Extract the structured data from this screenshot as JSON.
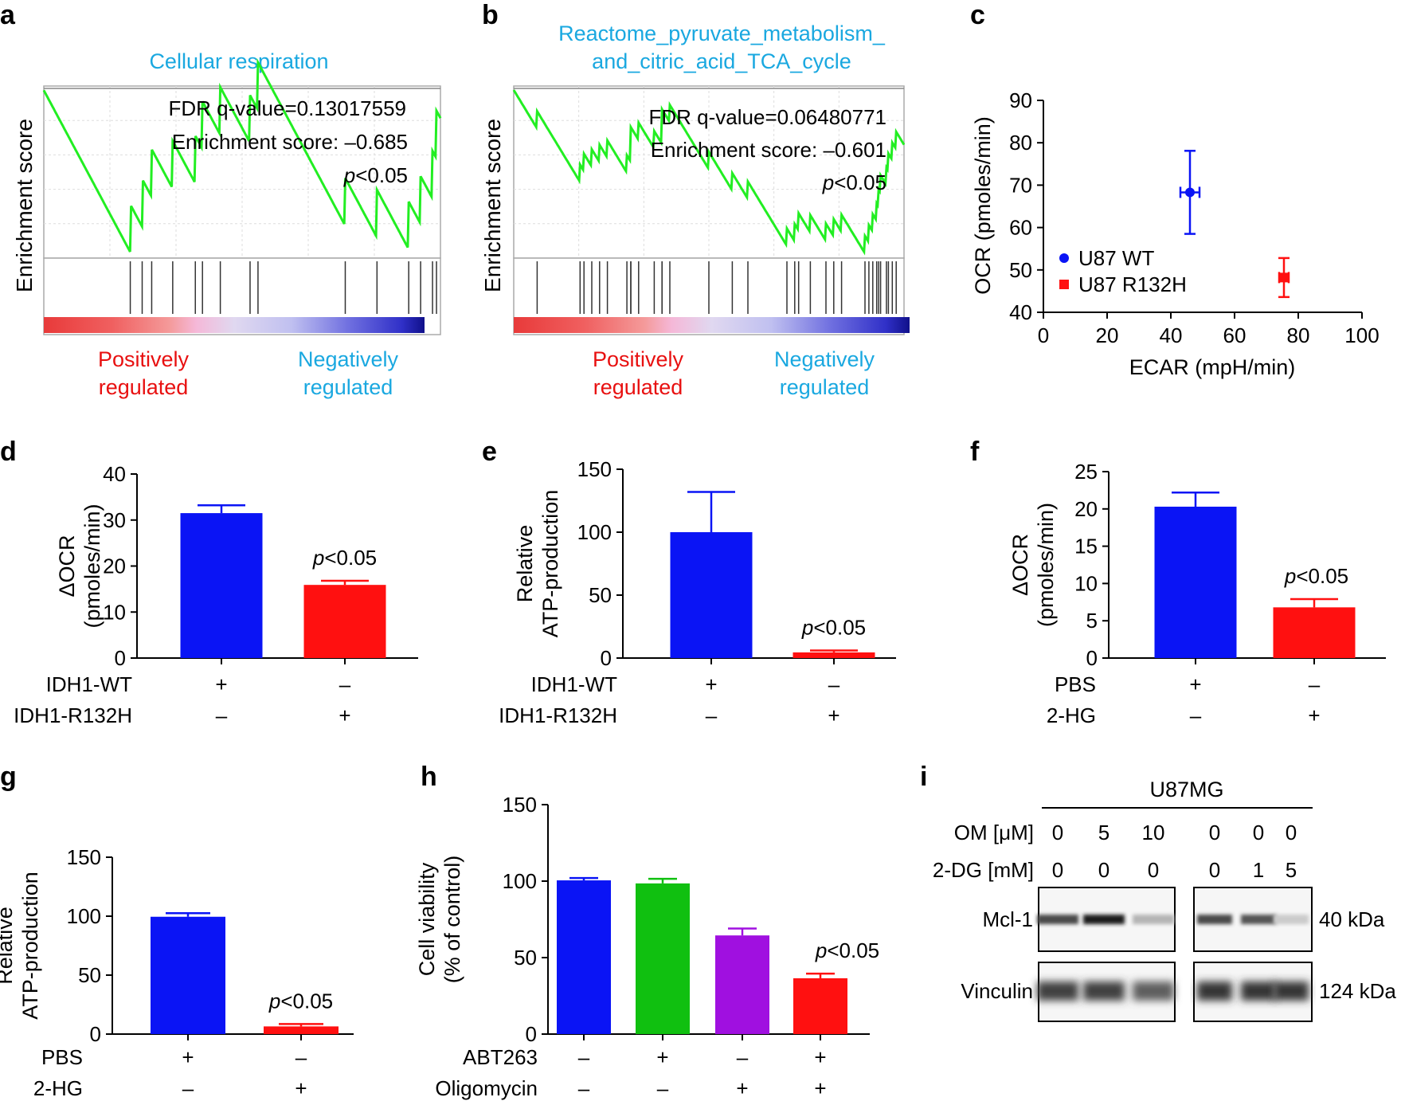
{
  "colors": {
    "blue": "#0a14f5",
    "red": "#ff1010",
    "green": "#10c010",
    "purple": "#a010e0",
    "cyan": "#1aa8e0",
    "gsea_line": "#22ee22"
  },
  "chart_data": [
    {
      "panel": "a",
      "type": "line",
      "title": "Cellular respiration",
      "ylabel": "Enrichment score",
      "annotations": [
        "FDR q-value=0.13017559",
        "Enrichment score: –0.685",
        "p<0.05"
      ],
      "enrichment_score": -0.685,
      "fdr_q_value": 0.13017559,
      "hit_ranks": [
        0.218,
        0.248,
        0.272,
        0.325,
        0.382,
        0.4,
        0.445,
        0.52,
        0.54,
        0.76,
        0.84,
        0.92,
        0.95,
        0.98,
        0.99
      ],
      "legend": [
        "Positively regulated",
        "Negatively regulated"
      ]
    },
    {
      "panel": "b",
      "type": "line",
      "title": [
        "Reactome_pyruvate_metabolism_",
        "and_citric_acid_TCA_cycle"
      ],
      "ylabel": "Enrichment score",
      "annotations": [
        "FDR q-value=0.06480771",
        "Enrichment score: –0.601",
        "p<0.05"
      ],
      "enrichment_score": -0.601,
      "fdr_q_value": 0.06480771,
      "hit_ranks": [
        0.06,
        0.17,
        0.18,
        0.2,
        0.22,
        0.24,
        0.29,
        0.3,
        0.3,
        0.32,
        0.36,
        0.38,
        0.38,
        0.4,
        0.5,
        0.56,
        0.6,
        0.7,
        0.72,
        0.73,
        0.76,
        0.8,
        0.82,
        0.84,
        0.9,
        0.91,
        0.92,
        0.93,
        0.935,
        0.94,
        0.955,
        0.96,
        0.97,
        0.98
      ],
      "legend": [
        "Positively regulated",
        "Negatively regulated"
      ]
    },
    {
      "panel": "c",
      "type": "scatter",
      "xlabel": "ECAR (mpH/min)",
      "ylabel": "OCR (pmoles/min)",
      "xlim": [
        0,
        100
      ],
      "ylim": [
        40,
        90
      ],
      "xticks": [
        "0",
        "20",
        "40",
        "60",
        "80",
        "100"
      ],
      "yticks": [
        "40",
        "50",
        "60",
        "70",
        "80",
        "90"
      ],
      "series": [
        {
          "name": "U87 WT",
          "x": 46,
          "y": 68.3,
          "xerr": 3,
          "yerr": 9.8,
          "color": "blue"
        },
        {
          "name": "U87 R132H",
          "x": 75.5,
          "y": 48.2,
          "xerr": 1.5,
          "yerr": 4.6,
          "color": "red"
        }
      ]
    },
    {
      "panel": "d",
      "type": "bar",
      "ylabel": [
        "ΔOCR",
        "(pmoles/min)"
      ],
      "ylim": [
        0,
        40
      ],
      "yticks": [
        "0",
        "10",
        "20",
        "30",
        "40"
      ],
      "bars": [
        {
          "value": 31.5,
          "err": 1.7,
          "color": "blue"
        },
        {
          "value": 15.9,
          "err": 0.9,
          "color": "red"
        }
      ],
      "rows": [
        {
          "label": "IDH1-WT",
          "signs": [
            "+",
            "–"
          ]
        },
        {
          "label": "IDH1-R132H",
          "signs": [
            "–",
            "+"
          ]
        }
      ],
      "annotation": "p<0.05"
    },
    {
      "panel": "e",
      "type": "bar",
      "ylabel": [
        "Relative",
        "ATP-production"
      ],
      "ylim": [
        0,
        150
      ],
      "yticks": [
        "0",
        "50",
        "100",
        "150"
      ],
      "bars": [
        {
          "value": 100,
          "err": 32,
          "color": "blue"
        },
        {
          "value": 4.5,
          "err": 1.5,
          "color": "red"
        }
      ],
      "rows": [
        {
          "label": "IDH1-WT",
          "signs": [
            "+",
            "–"
          ]
        },
        {
          "label": "IDH1-R132H",
          "signs": [
            "–",
            "+"
          ]
        }
      ],
      "annotation": "p<0.05"
    },
    {
      "panel": "f",
      "type": "bar",
      "ylabel": [
        "ΔOCR",
        "(pmoles/min)"
      ],
      "ylim": [
        0,
        25
      ],
      "yticks": [
        "0",
        "5",
        "10",
        "15",
        "20",
        "25"
      ],
      "bars": [
        {
          "value": 20.3,
          "err": 1.9,
          "color": "blue"
        },
        {
          "value": 6.8,
          "err": 1.1,
          "color": "red"
        }
      ],
      "rows": [
        {
          "label": "PBS",
          "signs": [
            "+",
            "–"
          ]
        },
        {
          "label": "2-HG",
          "signs": [
            "–",
            "+"
          ]
        }
      ],
      "annotation": "p<0.05"
    },
    {
      "panel": "g",
      "type": "bar",
      "ylabel": [
        "Relative",
        "ATP-production"
      ],
      "ylim": [
        0,
        150
      ],
      "yticks": [
        "0",
        "50",
        "100",
        "150"
      ],
      "bars": [
        {
          "value": 99.5,
          "err": 3,
          "color": "blue"
        },
        {
          "value": 6.5,
          "err": 2,
          "color": "red"
        }
      ],
      "rows": [
        {
          "label": "PBS",
          "signs": [
            "+",
            "–"
          ]
        },
        {
          "label": "2-HG",
          "signs": [
            "–",
            "+"
          ]
        }
      ],
      "annotation": "p<0.05"
    },
    {
      "panel": "h",
      "type": "bar",
      "ylabel": [
        "Cell viability",
        "(% of control)"
      ],
      "ylim": [
        0,
        150
      ],
      "yticks": [
        "0",
        "50",
        "100",
        "150"
      ],
      "bars": [
        {
          "value": 100.5,
          "err": 1.5,
          "color": "blue"
        },
        {
          "value": 98.5,
          "err": 3,
          "color": "green"
        },
        {
          "value": 64.5,
          "err": 4.5,
          "color": "purple"
        },
        {
          "value": 36.5,
          "err": 3,
          "color": "red"
        }
      ],
      "rows": [
        {
          "label": "ABT263",
          "signs": [
            "–",
            "+",
            "–",
            "+"
          ]
        },
        {
          "label": "Oligomycin",
          "signs": [
            "–",
            "–",
            "+",
            "+"
          ]
        }
      ],
      "annotation": "p<0.05"
    }
  ],
  "panel_letters": [
    "a",
    "b",
    "c",
    "d",
    "e",
    "f",
    "g",
    "h",
    "i"
  ],
  "gsea": {
    "a": {
      "title": "Cellular respiration",
      "ylabel": "Enrichment score",
      "fdr": "FDR q-value=0.13017559",
      "es": "Enrichment score: –0.685",
      "p": "p",
      "p_rest": "<0.05",
      "pos_1": "Positively",
      "pos_2": "regulated",
      "neg_1": "Negatively",
      "neg_2": "regulated"
    },
    "b": {
      "title_1": "Reactome_pyruvate_metabolism_",
      "title_2": "and_citric_acid_TCA_cycle",
      "ylabel": "Enrichment score",
      "fdr": "FDR q-value=0.06480771",
      "es": "Enrichment score: –0.601",
      "p": "p",
      "p_rest": "<0.05",
      "pos_1": "Positively",
      "pos_2": "regulated",
      "neg_1": "Negatively",
      "neg_2": "regulated"
    }
  },
  "blot": {
    "cell_line": "U87MG",
    "om_label": "OM [μM]",
    "dg_label": "2-DG [mM]",
    "om_values": [
      "0",
      "5",
      "10",
      "0",
      "0",
      "0"
    ],
    "dg_values": [
      "0",
      "0",
      "0",
      "0",
      "1",
      "5"
    ],
    "rows": [
      {
        "protein": "Mcl-1",
        "size": "40 kDa",
        "intensity": [
          0.75,
          0.95,
          0.25,
          0.75,
          0.7,
          0.15
        ]
      },
      {
        "protein": "Vinculin",
        "size": "124 kDa",
        "intensity": [
          0.8,
          0.8,
          0.65,
          0.85,
          0.85,
          0.85
        ]
      }
    ]
  }
}
